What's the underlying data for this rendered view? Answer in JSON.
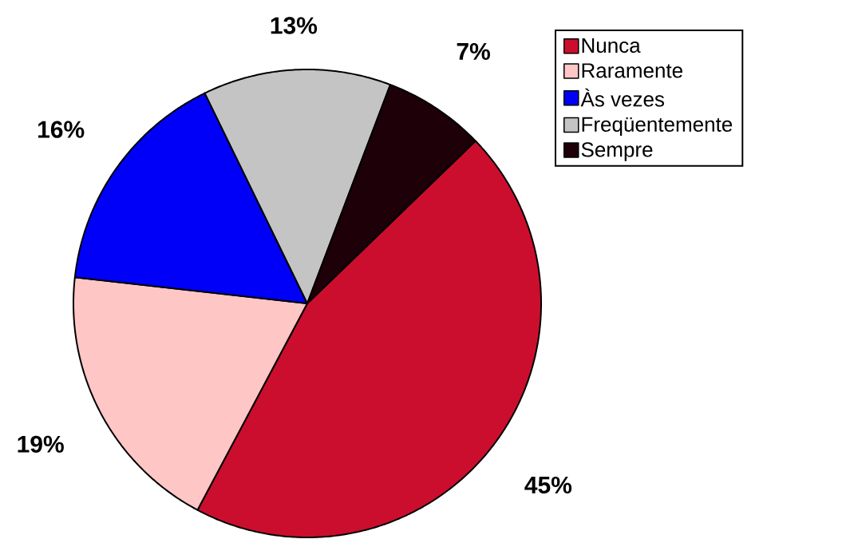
{
  "chart_data": {
    "type": "pie",
    "categories": [
      "Nunca",
      "Raramente",
      "Às vezes",
      "Freqüentemente",
      "Sempre"
    ],
    "values": [
      45,
      19,
      16,
      13,
      7
    ],
    "value_labels": [
      "45%",
      "19%",
      "16%",
      "13%",
      "7%"
    ],
    "colors": [
      "#cc0e2e",
      "#ffc6c6",
      "#0000f8",
      "#c4c4c4",
      "#1e0008"
    ],
    "legend": "top right"
  }
}
